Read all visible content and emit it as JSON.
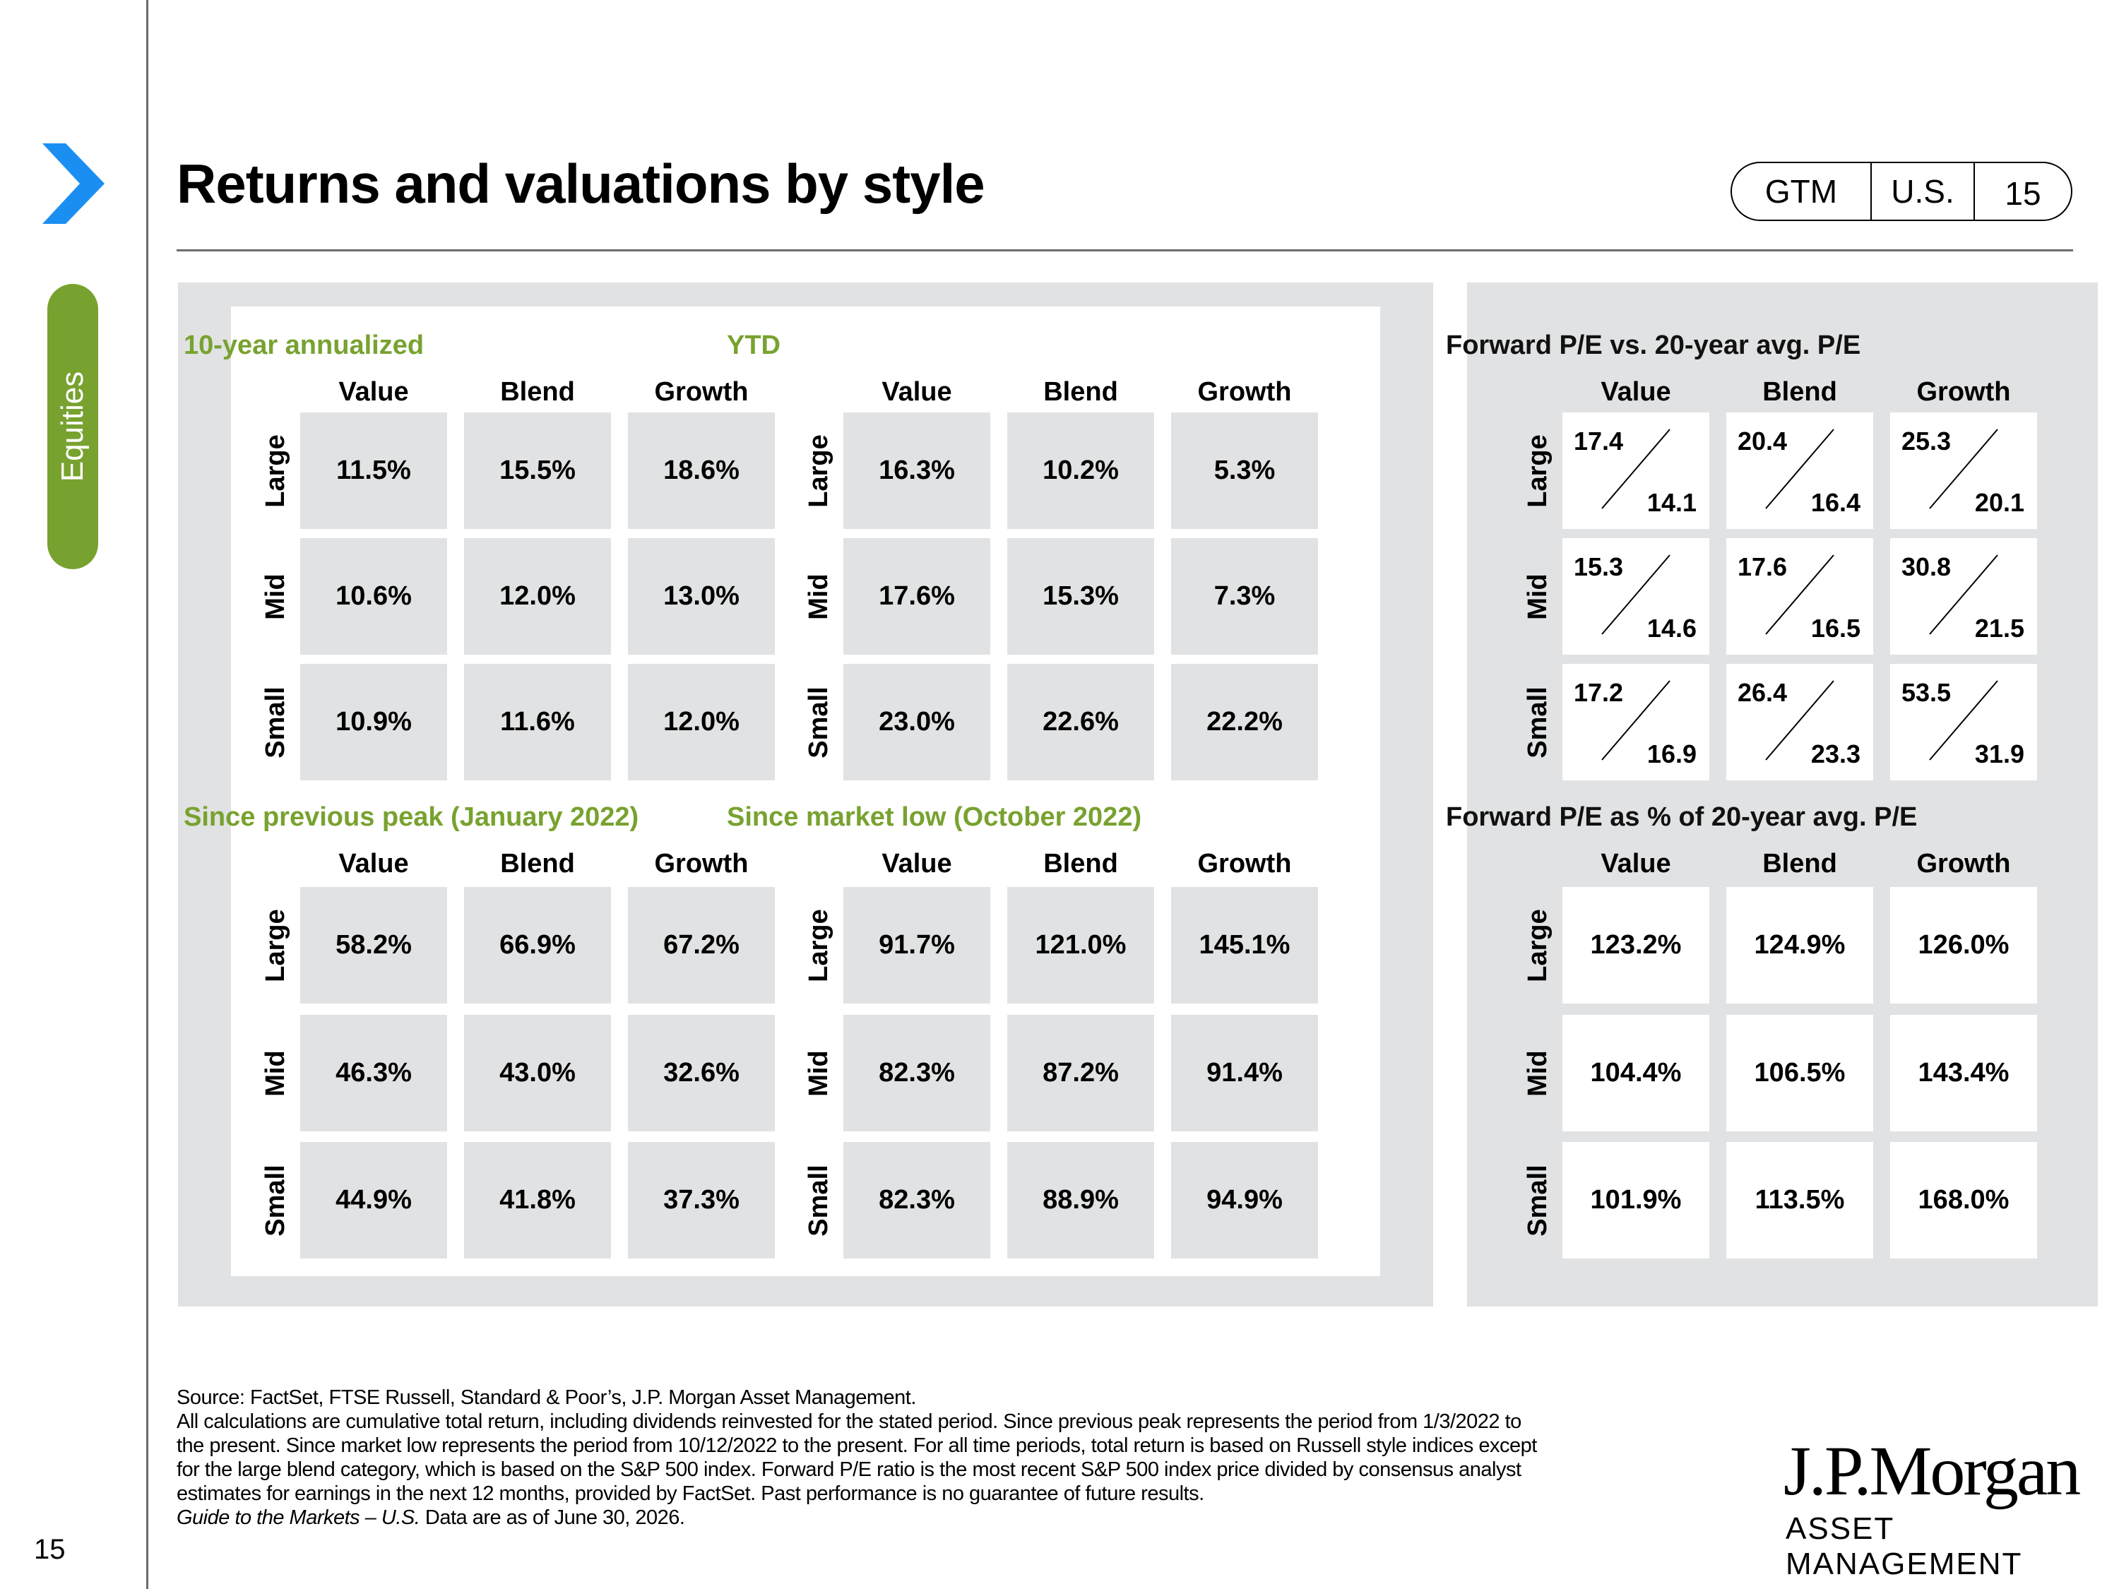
{
  "header": {
    "title": "Returns and valuations by style",
    "badge": {
      "a": "GTM",
      "b": "U.S.",
      "c": "15"
    }
  },
  "sidebar": {
    "tab_label": "Equities"
  },
  "columns": [
    "Value",
    "Blend",
    "Growth"
  ],
  "rows": [
    "Large",
    "Mid",
    "Small"
  ],
  "returns": [
    {
      "title": "10-year annualized",
      "values": [
        [
          "11.5%",
          "15.5%",
          "18.6%"
        ],
        [
          "10.6%",
          "12.0%",
          "13.0%"
        ],
        [
          "10.9%",
          "11.6%",
          "12.0%"
        ]
      ]
    },
    {
      "title": "YTD",
      "values": [
        [
          "16.3%",
          "10.2%",
          "5.3%"
        ],
        [
          "17.6%",
          "15.3%",
          "7.3%"
        ],
        [
          "23.0%",
          "22.6%",
          "22.2%"
        ]
      ]
    },
    {
      "title": "Since previous peak (January 2022)",
      "values": [
        [
          "58.2%",
          "66.9%",
          "67.2%"
        ],
        [
          "46.3%",
          "43.0%",
          "32.6%"
        ],
        [
          "44.9%",
          "41.8%",
          "37.3%"
        ]
      ]
    },
    {
      "title": "Since market low (October 2022)",
      "values": [
        [
          "91.7%",
          "121.0%",
          "145.1%"
        ],
        [
          "82.3%",
          "87.2%",
          "91.4%"
        ],
        [
          "82.3%",
          "88.9%",
          "94.9%"
        ]
      ]
    }
  ],
  "pe_vs_avg": {
    "title": "Forward P/E vs. 20-year avg. P/E",
    "values": [
      [
        [
          "17.4",
          "14.1"
        ],
        [
          "20.4",
          "16.4"
        ],
        [
          "25.3",
          "20.1"
        ]
      ],
      [
        [
          "15.3",
          "14.6"
        ],
        [
          "17.6",
          "16.5"
        ],
        [
          "30.8",
          "21.5"
        ]
      ],
      [
        [
          "17.2",
          "16.9"
        ],
        [
          "26.4",
          "23.3"
        ],
        [
          "53.5",
          "31.9"
        ]
      ]
    ]
  },
  "pe_pct": {
    "title": "Forward P/E as % of 20-year avg. P/E",
    "values": [
      [
        "123.2%",
        "124.9%",
        "126.0%"
      ],
      [
        "104.4%",
        "106.5%",
        "143.4%"
      ],
      [
        "101.9%",
        "113.5%",
        "168.0%"
      ]
    ]
  },
  "footer": {
    "lines": [
      "Source: FactSet, FTSE Russell, Standard & Poor’s, J.P. Morgan Asset Management.",
      "All calculations are cumulative total return, including dividends reinvested for the stated period. Since previous peak represents the period from 1/3/2022 to",
      "the present. Since market low represents the period from 10/12/2022 to the present. For all time periods, total return is based on Russell style indices except",
      "for the large blend category, which is based on the S&P 500 index. Forward P/E ratio is the most recent S&P 500 index price divided by consensus analyst",
      "estimates for earnings in the next 12 months, provided by FactSet. Past performance is no guarantee of future results."
    ],
    "guide_italic": "Guide to the Markets – U.S.",
    "guide_rest": " Data are as of June 30, 2026."
  },
  "brand": {
    "logo": "J.P.Morgan",
    "sub": "ASSET MANAGEMENT"
  },
  "page_number": "15",
  "colors": {
    "accent_green": "#78a22f",
    "chevron_blue": "#1b8ef2",
    "panel_gray": "#e1e2e3"
  }
}
